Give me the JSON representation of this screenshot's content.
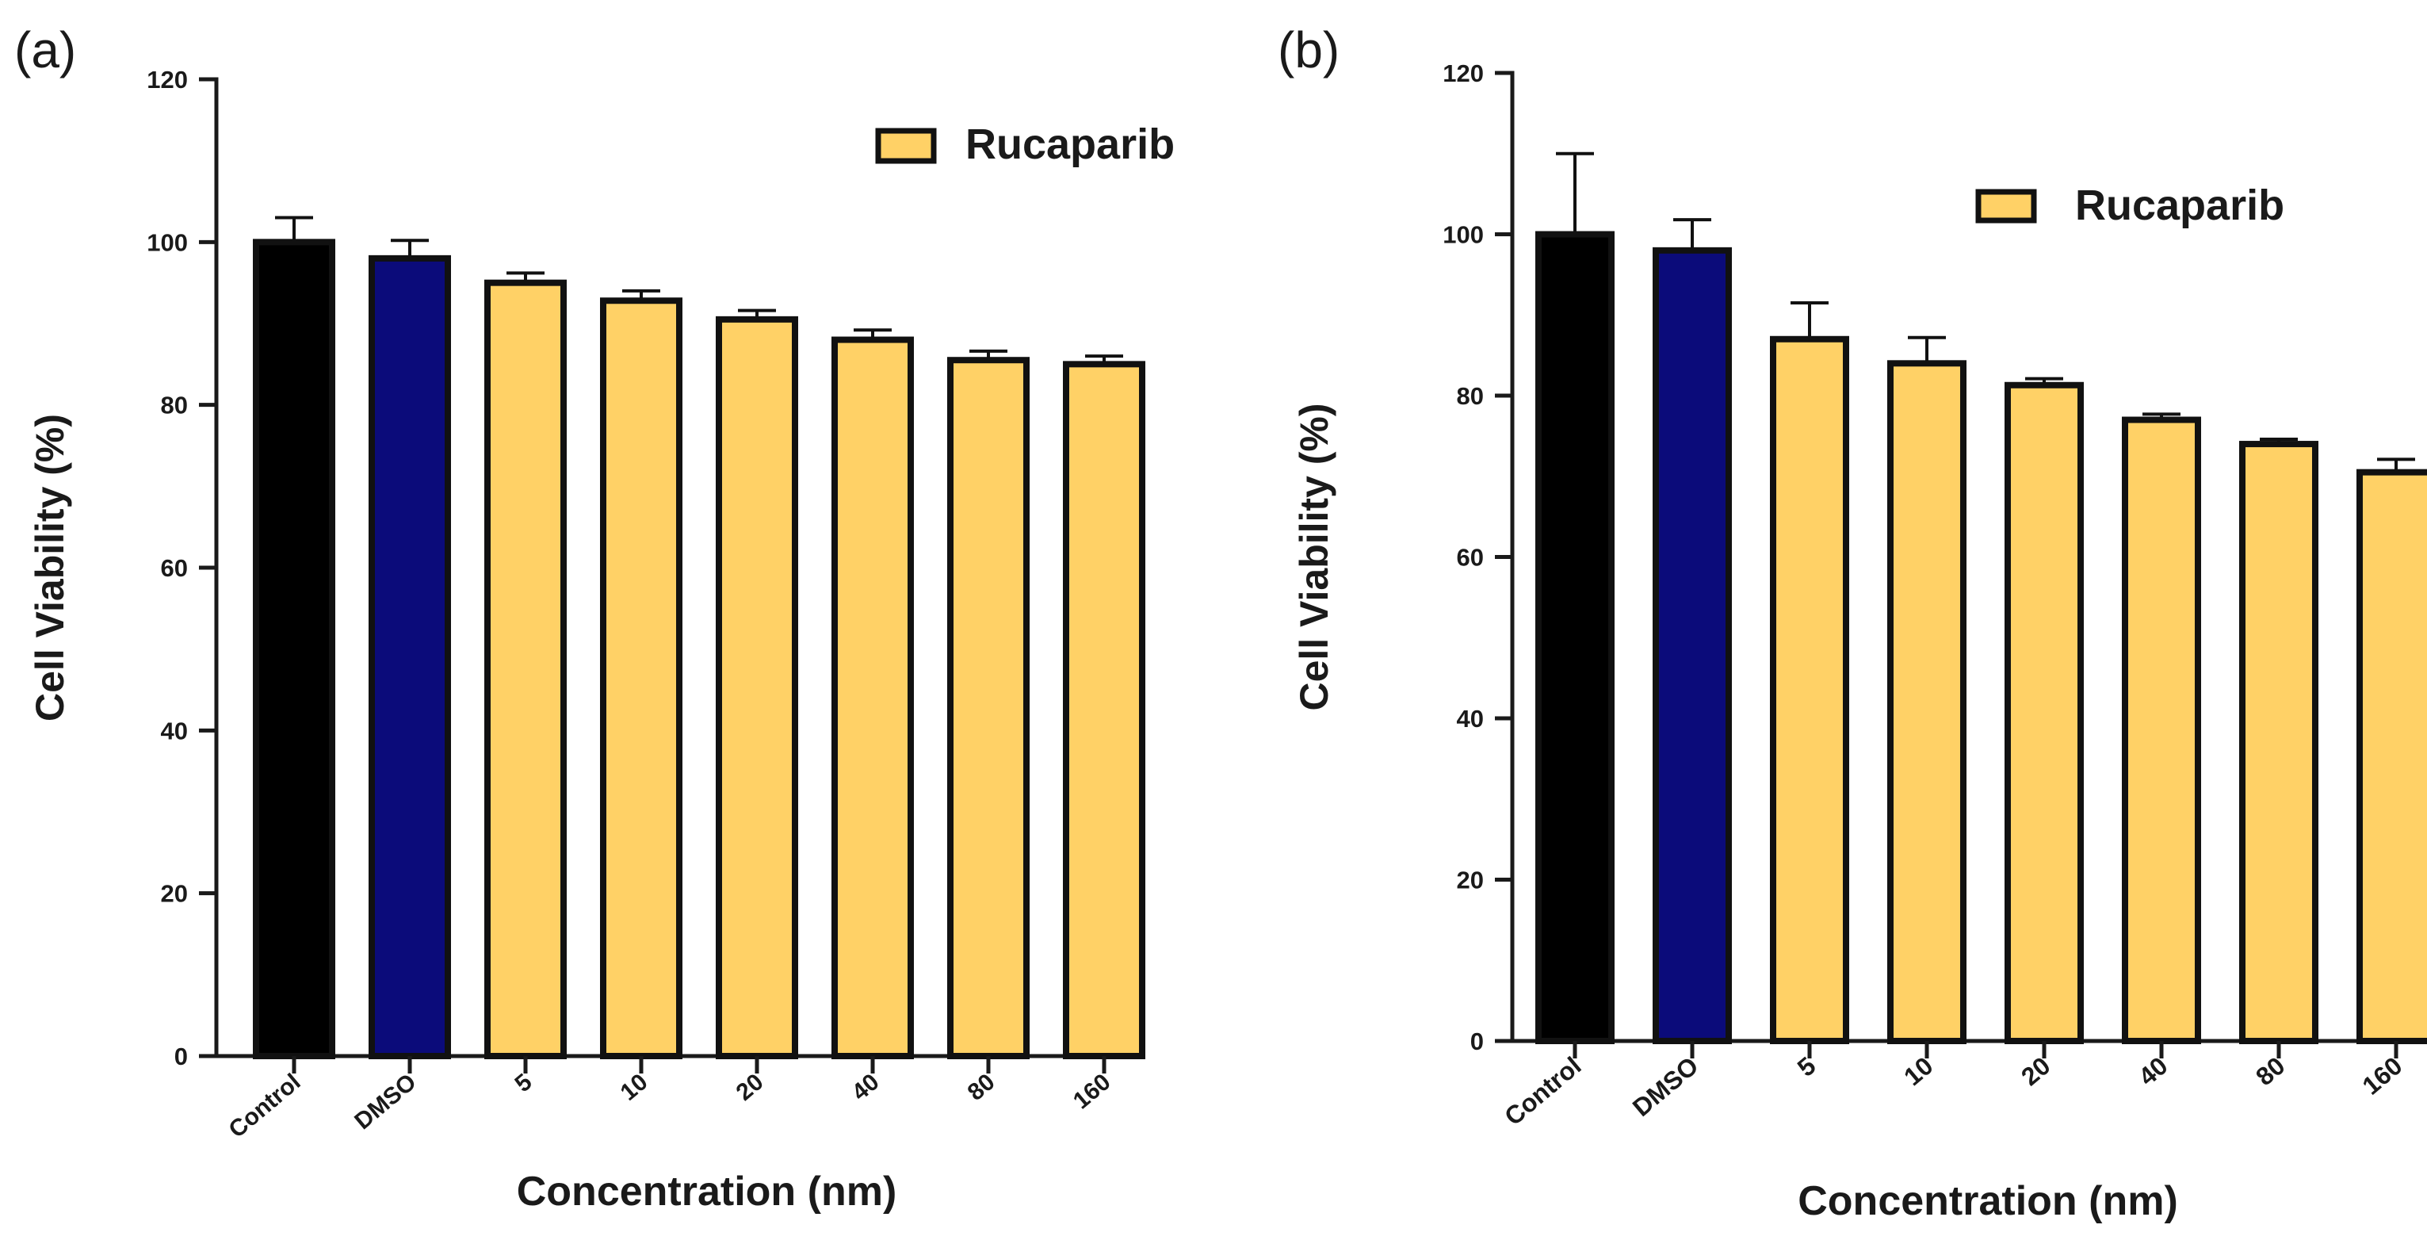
{
  "chart_data": [
    {
      "panel_label": "(a)",
      "type": "bar",
      "title": "",
      "xlabel": "Concentration (nm)",
      "ylabel": "Cell Viability (%)",
      "ylim": [
        0,
        120
      ],
      "yticks": [
        0,
        20,
        40,
        60,
        80,
        100,
        120
      ],
      "categories": [
        "Control",
        "DMSO",
        "5",
        "10",
        "20",
        "40",
        "80",
        "160"
      ],
      "values": [
        100,
        98,
        95,
        92.8,
        90.5,
        88,
        85.5,
        85
      ],
      "errors": [
        3,
        2.2,
        1.2,
        1.2,
        1.1,
        1.2,
        1.1,
        1
      ],
      "colors": [
        "#000000",
        "#0b0b7a",
        "#ffd166",
        "#ffd166",
        "#ffd166",
        "#ffd166",
        "#ffd166",
        "#ffd166"
      ],
      "legend": {
        "label": "Rucaparib",
        "color": "#ffd166",
        "position": "top-right"
      }
    },
    {
      "panel_label": "(b)",
      "type": "bar",
      "title": "",
      "xlabel": "Concentration (nm)",
      "ylabel": "Cell Viability (%)",
      "ylim": [
        0,
        120
      ],
      "yticks": [
        0,
        20,
        40,
        60,
        80,
        100,
        120
      ],
      "categories": [
        "Control",
        "DMSO",
        "5",
        "10",
        "20",
        "40",
        "80",
        "160"
      ],
      "values": [
        100,
        98,
        87,
        84,
        81.3,
        77,
        74,
        70.5
      ],
      "errors": [
        10,
        3.8,
        4.5,
        3.2,
        0.8,
        0.7,
        0.6,
        1.6
      ],
      "colors": [
        "#000000",
        "#0b0b7a",
        "#ffd166",
        "#ffd166",
        "#ffd166",
        "#ffd166",
        "#ffd166",
        "#ffd166"
      ],
      "legend": {
        "label": "Rucaparib",
        "color": "#ffd166",
        "position": "top-right"
      }
    }
  ]
}
